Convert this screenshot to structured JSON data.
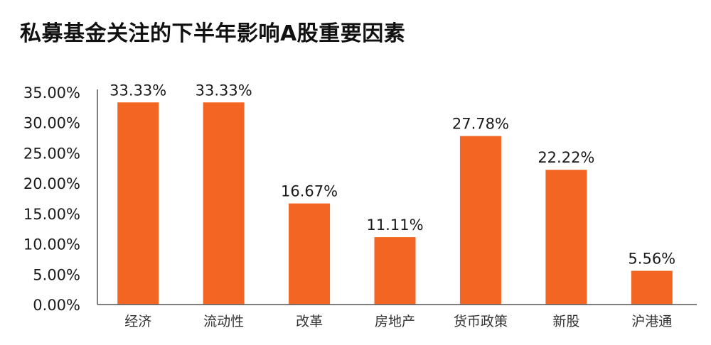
{
  "chart_data": {
    "type": "bar",
    "title": "私募基金关注的下半年影响A股重要因素",
    "categories": [
      "经济",
      "流动性",
      "改革",
      "房地产",
      "货币政策",
      "新股",
      "沪港通"
    ],
    "values": [
      33.33,
      33.33,
      16.67,
      11.11,
      27.78,
      22.22,
      5.56
    ],
    "value_labels": [
      "33.33%",
      "33.33%",
      "16.67%",
      "11.11%",
      "27.78%",
      "22.22%",
      "5.56%"
    ],
    "y_ticks": [
      0,
      5,
      10,
      15,
      20,
      25,
      30,
      35
    ],
    "y_tick_labels": [
      "0.00%",
      "5.00%",
      "10.00%",
      "15.00%",
      "20.00%",
      "25.00%",
      "30.00%",
      "35.00%"
    ],
    "ylim": [
      0,
      35
    ],
    "xlabel": "",
    "ylabel": "",
    "grid": false,
    "legend": "none",
    "bar_color": "#f26522",
    "axis_color": "#555555"
  }
}
